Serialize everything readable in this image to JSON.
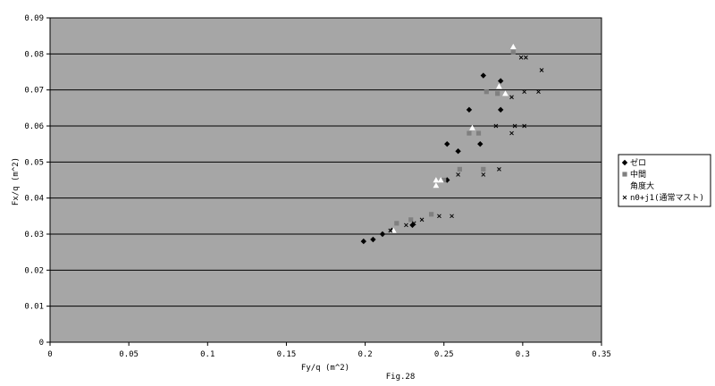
{
  "chart_data": {
    "type": "scatter",
    "title": "",
    "caption": "Fig.28",
    "xlabel": "Fy/q (m^2)",
    "ylabel": "Fx/q (m^2)",
    "xlim": [
      0,
      0.35
    ],
    "ylim": [
      0,
      0.09
    ],
    "x_ticks": [
      "0",
      "0.05",
      "0.1",
      "0.15",
      "0.2",
      "0.25",
      "0.3",
      "0.35"
    ],
    "y_ticks": [
      "0",
      "0.01",
      "0.02",
      "0.03",
      "0.04",
      "0.05",
      "0.06",
      "0.07",
      "0.08",
      "0.09"
    ],
    "grid": "horizontal",
    "plot_background": "#a6a6a6",
    "legend_position": "right",
    "series": [
      {
        "name": "ゼロ",
        "marker": "diamond",
        "color": "#000000",
        "points": [
          {
            "x": 0.199,
            "y": 0.028
          },
          {
            "x": 0.205,
            "y": 0.0285
          },
          {
            "x": 0.211,
            "y": 0.03
          },
          {
            "x": 0.217,
            "y": 0.031
          },
          {
            "x": 0.23,
            "y": 0.0325
          },
          {
            "x": 0.252,
            "y": 0.045
          },
          {
            "x": 0.252,
            "y": 0.055
          },
          {
            "x": 0.259,
            "y": 0.053
          },
          {
            "x": 0.266,
            "y": 0.0645
          },
          {
            "x": 0.273,
            "y": 0.055
          },
          {
            "x": 0.275,
            "y": 0.074
          },
          {
            "x": 0.286,
            "y": 0.0725
          },
          {
            "x": 0.286,
            "y": 0.0645
          }
        ]
      },
      {
        "name": "中間",
        "marker": "square",
        "color": "#808080",
        "points": [
          {
            "x": 0.22,
            "y": 0.033
          },
          {
            "x": 0.229,
            "y": 0.034
          },
          {
            "x": 0.242,
            "y": 0.0355
          },
          {
            "x": 0.25,
            "y": 0.045
          },
          {
            "x": 0.26,
            "y": 0.048
          },
          {
            "x": 0.266,
            "y": 0.058
          },
          {
            "x": 0.272,
            "y": 0.058
          },
          {
            "x": 0.275,
            "y": 0.048
          },
          {
            "x": 0.277,
            "y": 0.0695
          },
          {
            "x": 0.284,
            "y": 0.069
          },
          {
            "x": 0.294,
            "y": 0.0805
          }
        ]
      },
      {
        "name": "角度大",
        "marker": "triangle",
        "color": "#ffffff",
        "points": [
          {
            "x": 0.218,
            "y": 0.031
          },
          {
            "x": 0.245,
            "y": 0.0435
          },
          {
            "x": 0.245,
            "y": 0.045
          },
          {
            "x": 0.248,
            "y": 0.045
          },
          {
            "x": 0.268,
            "y": 0.0595
          },
          {
            "x": 0.285,
            "y": 0.071
          },
          {
            "x": 0.289,
            "y": 0.069
          },
          {
            "x": 0.294,
            "y": 0.082
          }
        ]
      },
      {
        "name": "n0+j1(通常マスト)",
        "marker": "x",
        "color": "#000000",
        "points": [
          {
            "x": 0.216,
            "y": 0.031
          },
          {
            "x": 0.226,
            "y": 0.0325
          },
          {
            "x": 0.231,
            "y": 0.033
          },
          {
            "x": 0.236,
            "y": 0.034
          },
          {
            "x": 0.247,
            "y": 0.035
          },
          {
            "x": 0.255,
            "y": 0.035
          },
          {
            "x": 0.259,
            "y": 0.0465
          },
          {
            "x": 0.275,
            "y": 0.0465
          },
          {
            "x": 0.283,
            "y": 0.06
          },
          {
            "x": 0.285,
            "y": 0.048
          },
          {
            "x": 0.293,
            "y": 0.058
          },
          {
            "x": 0.293,
            "y": 0.068
          },
          {
            "x": 0.295,
            "y": 0.06
          },
          {
            "x": 0.299,
            "y": 0.079
          },
          {
            "x": 0.301,
            "y": 0.0695
          },
          {
            "x": 0.301,
            "y": 0.06
          },
          {
            "x": 0.302,
            "y": 0.079
          },
          {
            "x": 0.31,
            "y": 0.0695
          },
          {
            "x": 0.312,
            "y": 0.0755
          }
        ]
      }
    ]
  }
}
